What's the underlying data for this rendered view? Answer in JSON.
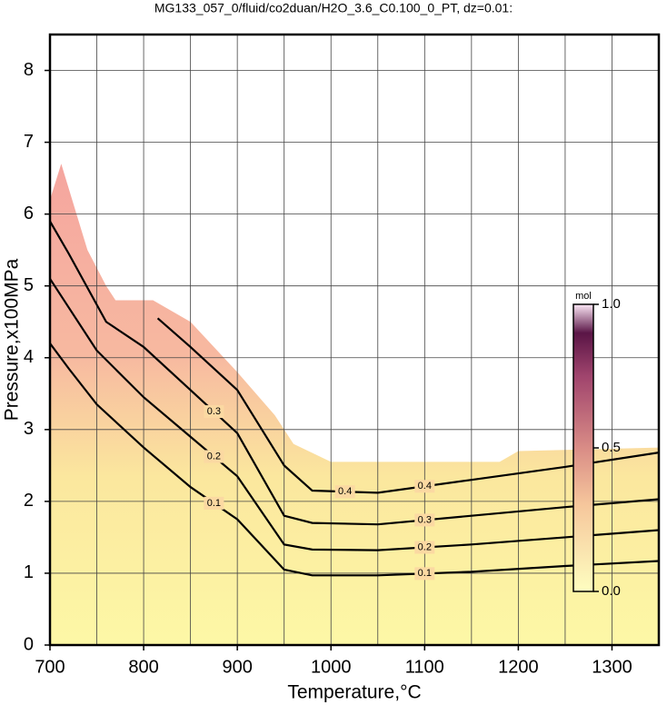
{
  "chart_data": {
    "type": "contour",
    "title": "MG133_057_0/fluid/co2duan/H2O_3.6_C0.100_0_PT, dz=0.01:",
    "x_label": "Temperature,°C",
    "y_label": "Pressure,x100MPa",
    "xlim": [
      700,
      1350
    ],
    "ylim": [
      0,
      8.5
    ],
    "xticks": [
      700,
      800,
      900,
      1000,
      1100,
      1200,
      1300
    ],
    "xminorticks": [
      750,
      850,
      950,
      1050,
      1150,
      1250
    ],
    "yticks": [
      0,
      1,
      2,
      3,
      4,
      5,
      6,
      7,
      8
    ],
    "grid": true,
    "field": {
      "x": [
        700,
        712,
        740,
        760,
        770,
        810,
        850,
        900,
        940,
        960,
        1000,
        1050,
        1100,
        1180,
        1200,
        1350
      ],
      "y": [
        6.2,
        6.7,
        5.5,
        5.0,
        4.8,
        4.8,
        4.5,
        3.8,
        3.2,
        2.8,
        2.55,
        2.55,
        2.55,
        2.55,
        2.7,
        2.75
      ]
    },
    "contours": [
      {
        "level": 0.1,
        "x": [
          700,
          720,
          750,
          800,
          850,
          900,
          950,
          980,
          1050,
          1150,
          1250,
          1350
        ],
        "y": [
          4.2,
          3.85,
          3.35,
          2.75,
          2.2,
          1.75,
          1.05,
          0.97,
          0.97,
          1.02,
          1.1,
          1.17
        ]
      },
      {
        "level": 0.2,
        "x": [
          700,
          720,
          750,
          800,
          850,
          900,
          950,
          980,
          1050,
          1150,
          1250,
          1350
        ],
        "y": [
          5.1,
          4.7,
          4.1,
          3.45,
          2.9,
          2.35,
          1.4,
          1.33,
          1.32,
          1.4,
          1.5,
          1.6
        ]
      },
      {
        "level": 0.3,
        "x": [
          700,
          720,
          760,
          800,
          850,
          900,
          950,
          980,
          1050,
          1150,
          1250,
          1350
        ],
        "y": [
          5.9,
          5.45,
          4.5,
          4.15,
          3.55,
          2.95,
          1.8,
          1.7,
          1.68,
          1.8,
          1.92,
          2.03
        ]
      },
      {
        "level": 0.4,
        "x": [
          815,
          850,
          900,
          950,
          980,
          1050,
          1150,
          1250,
          1350
        ],
        "y": [
          4.55,
          4.15,
          3.55,
          2.5,
          2.15,
          2.12,
          2.3,
          2.48,
          2.68
        ]
      }
    ],
    "colorbar": {
      "label": "mol",
      "lim": [
        0,
        1
      ],
      "ticks": [
        {
          "value": 0,
          "label": "0.0"
        },
        {
          "value": 0.5,
          "label": "0.5"
        },
        {
          "value": 1,
          "label": "1.0"
        }
      ]
    }
  }
}
